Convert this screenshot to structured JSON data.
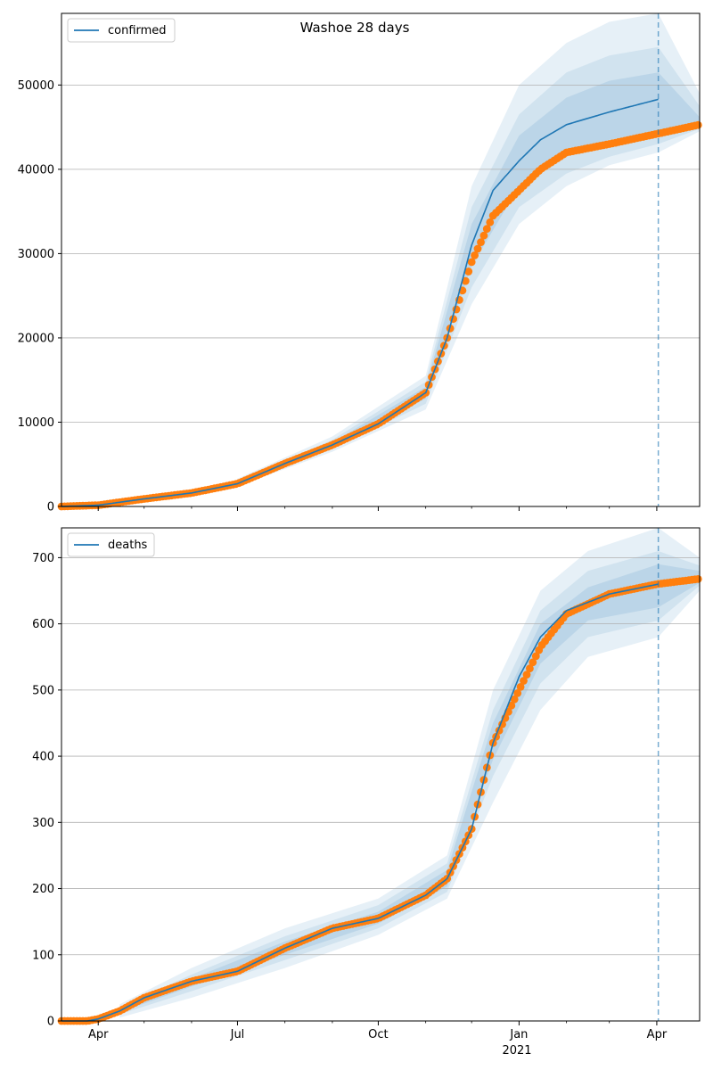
{
  "chart_data": [
    {
      "type": "line",
      "title": "Washoe 28 days",
      "legend": [
        "confirmed"
      ],
      "legend_placement": "top-left",
      "grid": "y",
      "xlim": [
        "2020-03-08",
        "2021-04-29"
      ],
      "ylim": [
        0,
        58500
      ],
      "yticks": [
        0,
        10000,
        20000,
        30000,
        40000,
        50000
      ],
      "ytick_labels": [
        "0",
        "10000",
        "20000",
        "30000",
        "40000",
        "50000"
      ],
      "forecast_start": "2021-04-02",
      "observed": {
        "x": [
          "2020-03-08",
          "2020-04-01",
          "2020-05-01",
          "2020-06-01",
          "2020-07-01",
          "2020-08-01",
          "2020-09-01",
          "2020-10-01",
          "2020-11-01",
          "2020-11-15",
          "2020-12-01",
          "2020-12-15",
          "2021-01-01",
          "2021-01-15",
          "2021-02-01",
          "2021-03-01",
          "2021-04-01",
          "2021-04-29"
        ],
        "y": [
          0,
          150,
          900,
          1600,
          2700,
          5100,
          7300,
          9800,
          13500,
          20000,
          29000,
          34500,
          37500,
          40000,
          42000,
          43000,
          44200,
          45300
        ]
      },
      "model": {
        "name": "confirmed",
        "x": [
          "2020-03-08",
          "2020-04-01",
          "2020-05-01",
          "2020-06-01",
          "2020-07-01",
          "2020-08-01",
          "2020-09-01",
          "2020-10-01",
          "2020-11-01",
          "2020-11-15",
          "2020-12-01",
          "2020-12-15",
          "2021-01-01",
          "2021-01-15",
          "2021-02-01",
          "2021-03-01",
          "2021-04-02"
        ],
        "y": [
          0,
          150,
          900,
          1600,
          2700,
          5100,
          7300,
          9800,
          13500,
          20000,
          31000,
          37500,
          41000,
          43500,
          45300,
          46800,
          48300
        ]
      },
      "bands": [
        {
          "level": "outer",
          "x": [
            "2020-07-01",
            "2020-09-01",
            "2020-11-01",
            "2020-12-01",
            "2021-01-01",
            "2021-02-01",
            "2021-03-01",
            "2021-04-02",
            "2021-04-29"
          ],
          "lower": [
            2400,
            6500,
            11500,
            24000,
            33500,
            38000,
            40500,
            42000,
            44500
          ],
          "upper": [
            3300,
            8300,
            15500,
            38000,
            50000,
            55000,
            57500,
            58500,
            49000
          ]
        },
        {
          "level": "middle",
          "x": [
            "2020-07-01",
            "2020-09-01",
            "2020-11-01",
            "2020-12-01",
            "2021-01-01",
            "2021-02-01",
            "2021-03-01",
            "2021-04-02",
            "2021-04-29"
          ],
          "lower": [
            2550,
            6800,
            12200,
            26000,
            35500,
            39500,
            41500,
            43000,
            44800
          ],
          "upper": [
            3100,
            7900,
            14800,
            35500,
            46500,
            51500,
            53500,
            54500,
            47500
          ]
        },
        {
          "level": "inner",
          "x": [
            "2020-07-01",
            "2020-09-01",
            "2020-11-01",
            "2020-12-01",
            "2021-01-01",
            "2021-02-01",
            "2021-03-01",
            "2021-04-02",
            "2021-04-29"
          ],
          "lower": [
            2650,
            7050,
            12800,
            28500,
            38000,
            42000,
            43500,
            44500,
            45000
          ],
          "upper": [
            2900,
            7600,
            14200,
            33500,
            44000,
            48500,
            50500,
            51500,
            46200
          ]
        }
      ]
    },
    {
      "type": "line",
      "legend": [
        "deaths"
      ],
      "legend_placement": "top-left",
      "grid": "y",
      "xlim": [
        "2020-03-08",
        "2021-04-29"
      ],
      "ylim": [
        0,
        745
      ],
      "yticks": [
        0,
        100,
        200,
        300,
        400,
        500,
        600,
        700
      ],
      "ytick_labels": [
        "0",
        "100",
        "200",
        "300",
        "400",
        "500",
        "600",
        "700"
      ],
      "xtick_labels": [
        "Apr",
        "Jul",
        "Oct",
        "Jan",
        "Apr"
      ],
      "xtick_dates": [
        "2020-04-01",
        "2020-07-01",
        "2020-10-01",
        "2021-01-01",
        "2021-04-01"
      ],
      "xtick_year_label": "2021",
      "forecast_start": "2021-04-02",
      "observed": {
        "x": [
          "2020-03-08",
          "2020-03-25",
          "2020-04-01",
          "2020-04-15",
          "2020-05-01",
          "2020-06-01",
          "2020-07-01",
          "2020-08-01",
          "2020-09-01",
          "2020-10-01",
          "2020-11-01",
          "2020-11-15",
          "2020-12-01",
          "2020-12-15",
          "2021-01-01",
          "2021-01-15",
          "2021-02-01",
          "2021-03-01",
          "2021-04-01",
          "2021-04-29"
        ],
        "y": [
          0,
          0,
          3,
          15,
          35,
          60,
          75,
          110,
          140,
          155,
          190,
          215,
          290,
          420,
          500,
          565,
          615,
          645,
          660,
          668
        ]
      },
      "model": {
        "name": "deaths",
        "x": [
          "2020-03-08",
          "2020-03-25",
          "2020-04-01",
          "2020-04-15",
          "2020-05-01",
          "2020-06-01",
          "2020-07-01",
          "2020-08-01",
          "2020-09-01",
          "2020-10-01",
          "2020-11-01",
          "2020-11-15",
          "2020-12-01",
          "2020-12-15",
          "2021-01-01",
          "2021-01-15",
          "2021-02-01",
          "2021-03-01",
          "2021-04-02"
        ],
        "y": [
          0,
          0,
          3,
          15,
          35,
          60,
          75,
          110,
          140,
          155,
          190,
          215,
          290,
          420,
          520,
          580,
          620,
          645,
          660
        ]
      },
      "bands": [
        {
          "level": "outer",
          "x": [
            "2020-04-15",
            "2020-06-01",
            "2020-08-01",
            "2020-10-01",
            "2020-11-15",
            "2020-12-15",
            "2021-01-15",
            "2021-02-15",
            "2021-04-02",
            "2021-04-29"
          ],
          "lower": [
            5,
            35,
            80,
            130,
            185,
            330,
            470,
            550,
            580,
            650
          ],
          "upper": [
            25,
            80,
            140,
            185,
            250,
            500,
            650,
            710,
            745,
            700
          ]
        },
        {
          "level": "middle",
          "x": [
            "2020-04-15",
            "2020-06-01",
            "2020-08-01",
            "2020-10-01",
            "2020-11-15",
            "2020-12-15",
            "2021-01-15",
            "2021-02-15",
            "2021-04-02",
            "2021-04-29"
          ],
          "lower": [
            10,
            45,
            92,
            140,
            195,
            370,
            510,
            580,
            605,
            658
          ],
          "upper": [
            21,
            70,
            128,
            175,
            238,
            470,
            620,
            680,
            710,
            688
          ]
        },
        {
          "level": "inner",
          "x": [
            "2020-04-15",
            "2020-06-01",
            "2020-08-01",
            "2020-10-01",
            "2020-11-15",
            "2020-12-15",
            "2021-01-15",
            "2021-02-15",
            "2021-04-02",
            "2021-04-29"
          ],
          "lower": [
            13,
            52,
            100,
            147,
            203,
            395,
            540,
            605,
            625,
            662
          ],
          "upper": [
            18,
            64,
            120,
            165,
            228,
            450,
            600,
            655,
            690,
            680
          ]
        }
      ]
    }
  ],
  "colors": {
    "model_line": "#1f77b4",
    "observed_points": "#ff7f0e",
    "band_fill": "#1f77b4",
    "grid": "#b0b0b0",
    "forecast_line": "#1f77b4"
  }
}
